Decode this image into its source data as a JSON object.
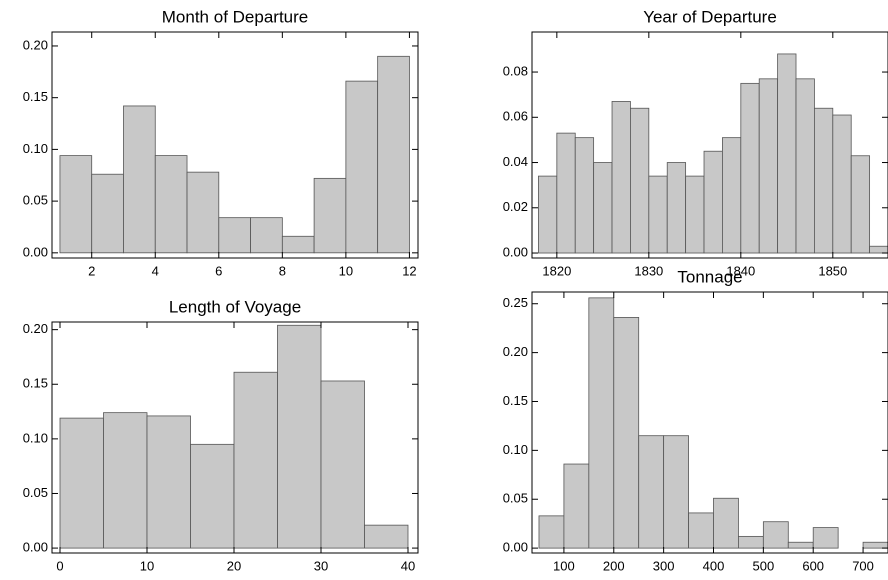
{
  "chart_data": [
    {
      "type": "histogram",
      "title": "Month of Departure",
      "color": "#c8c8c8",
      "bins": [
        1,
        2,
        3,
        4,
        5,
        6,
        7,
        8,
        9,
        10,
        11,
        12
      ],
      "values": [
        0.094,
        0.076,
        0.142,
        0.094,
        0.078,
        0.034,
        0.034,
        0.016,
        0.072,
        0.166,
        0.19
      ],
      "xlim": [
        0.75,
        12.27
      ],
      "ylim": [
        -0.005,
        0.2135
      ],
      "xticks": [
        2,
        4,
        6,
        8,
        10,
        12
      ],
      "yticks": [
        {
          "value": 0,
          "label": "0.00"
        },
        {
          "value": 0.05,
          "label": "0.05"
        },
        {
          "value": 0.1,
          "label": "0.10"
        },
        {
          "value": 0.15,
          "label": "0.15"
        },
        {
          "value": 0.2,
          "label": "0.20"
        }
      ]
    },
    {
      "type": "histogram",
      "title": "Year of Departure",
      "color": "#c8c8c8",
      "bins": [
        1818,
        1820,
        1822,
        1824,
        1826,
        1828,
        1830,
        1832,
        1834,
        1836,
        1838,
        1840,
        1842,
        1844,
        1846,
        1848,
        1850,
        1852,
        1854,
        1856
      ],
      "values": [
        0.034,
        0.053,
        0.051,
        0.04,
        0.067,
        0.064,
        0.034,
        0.04,
        0.034,
        0.045,
        0.051,
        0.075,
        0.077,
        0.088,
        0.077,
        0.064,
        0.061,
        0.043,
        0.003
      ],
      "xlim": [
        1817.3,
        1856
      ],
      "ylim": [
        -0.0022,
        0.0977
      ],
      "xticks": [
        1820,
        1830,
        1840,
        1850
      ],
      "yticks": [
        {
          "value": 0,
          "label": "0.00"
        },
        {
          "value": 0.02,
          "label": "0.02"
        },
        {
          "value": 0.04,
          "label": "0.04"
        },
        {
          "value": 0.06,
          "label": "0.06"
        },
        {
          "value": 0.08,
          "label": "0.08"
        }
      ]
    },
    {
      "type": "histogram",
      "title": "Length of Voyage",
      "color": "#c8c8c8",
      "bins": [
        0,
        5,
        10,
        15,
        20,
        25,
        30,
        35,
        40
      ],
      "values": [
        0.119,
        0.124,
        0.121,
        0.095,
        0.161,
        0.204,
        0.153,
        0.021
      ],
      "xlim": [
        -0.92,
        41.15
      ],
      "ylim": [
        -0.0045,
        0.207
      ],
      "xticks": [
        0,
        10,
        20,
        30,
        40
      ],
      "yticks": [
        {
          "value": 0,
          "label": "0.00"
        },
        {
          "value": 0.05,
          "label": "0.05"
        },
        {
          "value": 0.1,
          "label": "0.10"
        },
        {
          "value": 0.15,
          "label": "0.15"
        },
        {
          "value": 0.2,
          "label": "0.20"
        }
      ]
    },
    {
      "type": "histogram",
      "title": "Tonnage",
      "color": "#c8c8c8",
      "bins": [
        50,
        100,
        150,
        200,
        250,
        300,
        350,
        400,
        450,
        500,
        550,
        600,
        650,
        700,
        750
      ],
      "values": [
        0.033,
        0.086,
        0.256,
        0.236,
        0.115,
        0.115,
        0.036,
        0.051,
        0.012,
        0.027,
        0.006,
        0.021,
        0,
        0.006
      ],
      "xlim": [
        36,
        750
      ],
      "ylim": [
        -0.005,
        0.262
      ],
      "xticks": [
        100,
        200,
        300,
        400,
        500,
        600,
        700
      ],
      "yticks": [
        {
          "value": 0,
          "label": "0.00"
        },
        {
          "value": 0.05,
          "label": "0.05"
        },
        {
          "value": 0.1,
          "label": "0.10"
        },
        {
          "value": 0.15,
          "label": "0.15"
        },
        {
          "value": 0.2,
          "label": "0.20"
        },
        {
          "value": 0.25,
          "label": "0.25"
        }
      ]
    }
  ]
}
